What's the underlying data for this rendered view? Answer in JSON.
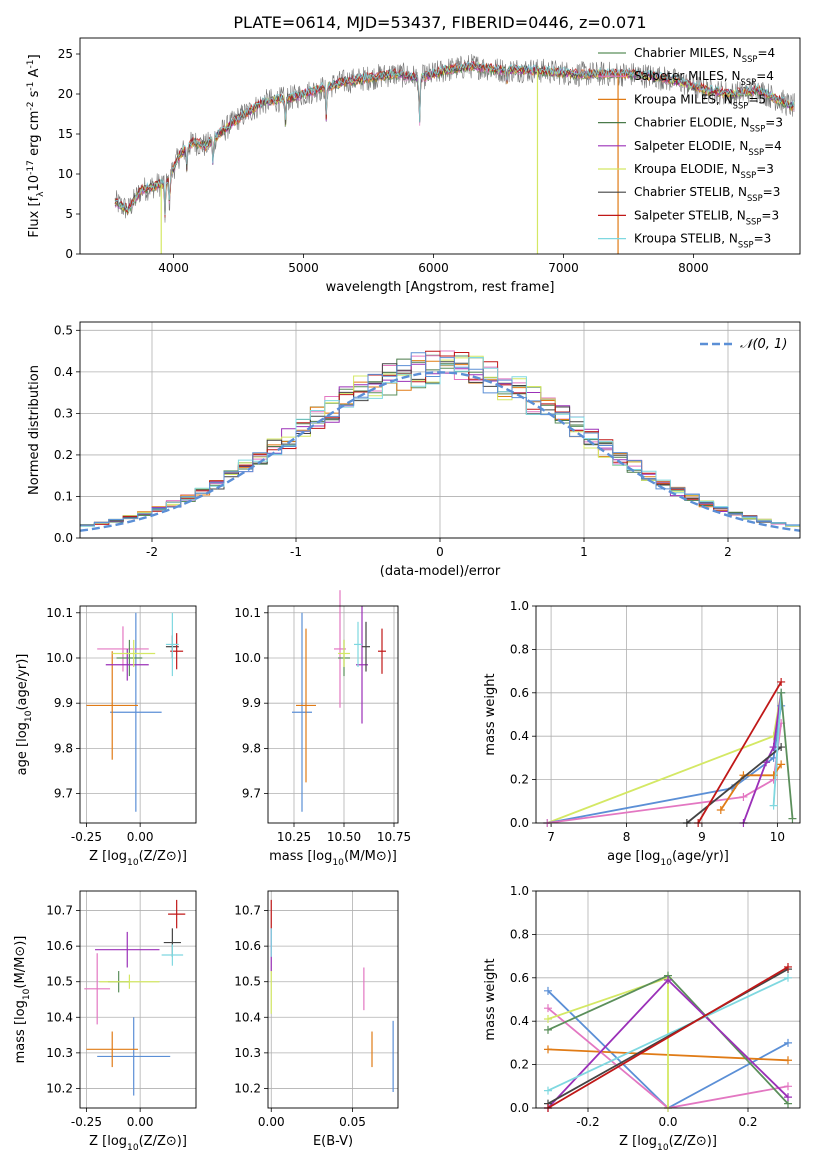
{
  "title": "PLATE=0614, MJD=53437, FIBERID=0446, z=0.071",
  "chart_data": [
    {
      "type": "line",
      "id": "spectrum",
      "xlabel": "wavelength [Angstrom, rest frame]",
      "ylabel": "Flux [f_λ10^-17 erg cm^-2 s^-1 A^-1]",
      "xlim": [
        3280,
        8820
      ],
      "ylim": [
        0,
        27
      ],
      "xticks": [
        4000,
        5000,
        6000,
        7000,
        8000
      ],
      "yticks": [
        0,
        5,
        10,
        15,
        20,
        25
      ],
      "grid": false,
      "legend_position": "top-right",
      "legend": [
        {
          "label": "Chabrier MILES, N_SSP=4",
          "color": "#5b8f5b"
        },
        {
          "label": "Salpeter MILES, N_SSP=4",
          "color": "#e377c2"
        },
        {
          "label": "Kroupa MILES, N_SSP=5",
          "color": "#e07b16"
        },
        {
          "label": "Chabrier ELODIE, N_SSP=3",
          "color": "#4a7a4a"
        },
        {
          "label": "Salpeter ELODIE, N_SSP=4",
          "color": "#9b30b8"
        },
        {
          "label": "Kroupa ELODIE, N_SSP=3",
          "color": "#d4e864"
        },
        {
          "label": "Chabrier STELIB, N_SSP=3",
          "color": "#444444"
        },
        {
          "label": "Salpeter STELIB, N_SSP=3",
          "color": "#c01818"
        },
        {
          "label": "Kroupa STELIB, N_SSP=3",
          "color": "#7fd8e0"
        }
      ],
      "series_shape": {
        "x": [
          3550,
          3650,
          3750,
          3850,
          3950,
          4050,
          4150,
          4250,
          4350,
          4500,
          4700,
          4900,
          5100,
          5300,
          5500,
          5700,
          5900,
          6100,
          6300,
          6500,
          6700,
          6900,
          7100,
          7300,
          7500,
          7700,
          7900,
          8100,
          8300,
          8500,
          8750
        ],
        "y": [
          6.5,
          5.5,
          8,
          8.5,
          9,
          12.5,
          14,
          13.5,
          15,
          17,
          19,
          19.5,
          20.5,
          21.5,
          22,
          22.5,
          22,
          23,
          23.5,
          23,
          23,
          22.8,
          22.5,
          22.5,
          22.5,
          22.2,
          21.5,
          20.5,
          20,
          20.5,
          18.5
        ]
      }
    },
    {
      "type": "histogram",
      "id": "residuals",
      "xlabel": "(data-model)/error",
      "ylabel": "Normed distribution",
      "xlim": [
        -2.5,
        2.5
      ],
      "ylim": [
        0,
        0.52
      ],
      "xticks": [
        -2,
        -1,
        0,
        1,
        2
      ],
      "yticks": [
        0.0,
        0.1,
        0.2,
        0.3,
        0.4,
        0.5
      ],
      "grid": true,
      "legend_position": "top-right",
      "legend_label": "𝒩(0, 1)",
      "gaussian_color": "#5b8fd6",
      "bin_width": 0.1
    },
    {
      "type": "scatter",
      "id": "age-vs-Z",
      "xlabel": "Z [log10(Z/Z⊙)]",
      "ylabel": "age [log10(age/yr)]",
      "xlim": [
        -0.28,
        0.26
      ],
      "ylim": [
        9.635,
        10.115
      ],
      "xticks": [
        -0.25,
        0.0
      ],
      "yticks": [
        9.7,
        9.8,
        9.9,
        10.0,
        10.1
      ],
      "grid": true,
      "points": [
        {
          "x": -0.02,
          "y": 9.88,
          "xerr": 0.12,
          "yerr": 0.22,
          "color": "#5b8fd6"
        },
        {
          "x": -0.13,
          "y": 9.895,
          "xerr": 0.12,
          "yerr": 0.12,
          "color": "#e07b16"
        },
        {
          "x": -0.08,
          "y": 10.02,
          "xerr": 0.12,
          "yerr": 0.05,
          "color": "#e377c2"
        },
        {
          "x": -0.05,
          "y": 10.0,
          "xerr": 0.06,
          "yerr": 0.04,
          "color": "#5b8f5b"
        },
        {
          "x": -0.06,
          "y": 9.985,
          "xerr": 0.1,
          "yerr": 0.035,
          "color": "#9b30b8"
        },
        {
          "x": -0.03,
          "y": 10.01,
          "xerr": 0.1,
          "yerr": 0.03,
          "color": "#d4e864"
        },
        {
          "x": 0.15,
          "y": 10.025,
          "xerr": 0.03,
          "yerr": 0.025,
          "color": "#444444"
        },
        {
          "x": 0.17,
          "y": 10.015,
          "xerr": 0.03,
          "yerr": 0.04,
          "color": "#c01818"
        },
        {
          "x": 0.15,
          "y": 10.03,
          "xerr": 0.03,
          "yerr": 0.07,
          "color": "#7fd8e0"
        }
      ]
    },
    {
      "type": "scatter",
      "id": "age-vs-mass",
      "xlabel": "mass [log10(M/M⊙)]",
      "ylabel": "",
      "xlim": [
        10.12,
        10.77
      ],
      "ylim": [
        9.635,
        10.115
      ],
      "xticks": [
        10.25,
        10.5,
        10.75
      ],
      "yticks": [
        9.7,
        9.8,
        9.9,
        10.0,
        10.1
      ],
      "grid": true,
      "points": [
        {
          "x": 10.29,
          "y": 9.88,
          "xerr": 0.05,
          "yerr": 0.22,
          "color": "#5b8fd6"
        },
        {
          "x": 10.31,
          "y": 9.895,
          "xerr": 0.05,
          "yerr": 0.17,
          "color": "#e07b16"
        },
        {
          "x": 10.48,
          "y": 10.02,
          "xerr": 0.03,
          "yerr": 0.13,
          "color": "#e377c2"
        },
        {
          "x": 10.5,
          "y": 10.0,
          "xerr": 0.03,
          "yerr": 0.04,
          "color": "#5b8f5b"
        },
        {
          "x": 10.59,
          "y": 9.985,
          "xerr": 0.03,
          "yerr": 0.13,
          "color": "#9b30b8"
        },
        {
          "x": 10.5,
          "y": 10.01,
          "xerr": 0.03,
          "yerr": 0.03,
          "color": "#d4e864"
        },
        {
          "x": 10.61,
          "y": 10.025,
          "xerr": 0.02,
          "yerr": 0.055,
          "color": "#444444"
        },
        {
          "x": 10.69,
          "y": 10.015,
          "xerr": 0.02,
          "yerr": 0.05,
          "color": "#c01818"
        },
        {
          "x": 10.57,
          "y": 10.03,
          "xerr": 0.02,
          "yerr": 0.05,
          "color": "#7fd8e0"
        }
      ]
    },
    {
      "type": "line",
      "id": "mass-weight-vs-age",
      "xlabel": "age [log10(age/yr)]",
      "ylabel": "mass weight",
      "xlim": [
        6.8,
        10.3
      ],
      "ylim": [
        0.0,
        1.0
      ],
      "xticks": [
        7,
        8,
        9,
        10
      ],
      "yticks": [
        0.0,
        0.2,
        0.4,
        0.6,
        0.8,
        1.0
      ],
      "grid": true,
      "series": [
        {
          "color": "#d4e864",
          "x": [
            6.95,
            9.95,
            10.05
          ],
          "y": [
            0.0,
            0.4,
            0.6
          ]
        },
        {
          "color": "#5b8fd6",
          "x": [
            6.95,
            9.4,
            9.95,
            10.05
          ],
          "y": [
            0.0,
            0.16,
            0.3,
            0.54
          ]
        },
        {
          "color": "#e377c2",
          "x": [
            6.95,
            9.55,
            9.95,
            10.05
          ],
          "y": [
            0.0,
            0.12,
            0.2,
            0.46
          ]
        },
        {
          "color": "#e07b16",
          "x": [
            9.25,
            9.55,
            9.95,
            10.05
          ],
          "y": [
            0.06,
            0.22,
            0.22,
            0.27
          ]
        },
        {
          "color": "#9b30b8",
          "x": [
            9.55,
            9.85,
            9.95,
            10.05
          ],
          "y": [
            0.0,
            0.28,
            0.35,
            0.6
          ]
        },
        {
          "color": "#444444",
          "x": [
            8.8,
            10.05
          ],
          "y": [
            0.0,
            0.35
          ]
        },
        {
          "color": "#c01818",
          "x": [
            8.95,
            10.05
          ],
          "y": [
            0.0,
            0.65
          ]
        },
        {
          "color": "#7fd8e0",
          "x": [
            9.95,
            10.05
          ],
          "y": [
            0.08,
            0.6
          ]
        },
        {
          "color": "#5b8f5b",
          "x": [
            10.05,
            10.2
          ],
          "y": [
            0.6,
            0.02
          ]
        }
      ]
    },
    {
      "type": "scatter",
      "id": "mass-vs-Z",
      "xlabel": "Z [log10(Z/Z⊙)]",
      "ylabel": "mass [log10(M/M⊙)]",
      "xlim": [
        -0.28,
        0.26
      ],
      "ylim": [
        10.145,
        10.755
      ],
      "xticks": [
        -0.25,
        0.0
      ],
      "yticks": [
        10.2,
        10.3,
        10.4,
        10.5,
        10.6,
        10.7
      ],
      "grid": true,
      "points": [
        {
          "x": -0.03,
          "y": 10.29,
          "xerr": 0.17,
          "yerr": 0.11,
          "color": "#5b8fd6"
        },
        {
          "x": -0.13,
          "y": 10.31,
          "xerr": 0.12,
          "yerr": 0.05,
          "color": "#e07b16"
        },
        {
          "x": -0.2,
          "y": 10.48,
          "xerr": 0.06,
          "yerr": 0.1,
          "color": "#e377c2"
        },
        {
          "x": -0.1,
          "y": 10.5,
          "xerr": 0.05,
          "yerr": 0.03,
          "color": "#5b8f5b"
        },
        {
          "x": -0.06,
          "y": 10.59,
          "xerr": 0.15,
          "yerr": 0.05,
          "color": "#9b30b8"
        },
        {
          "x": -0.05,
          "y": 10.5,
          "xerr": 0.14,
          "yerr": 0.02,
          "color": "#d4e864"
        },
        {
          "x": 0.15,
          "y": 10.61,
          "xerr": 0.04,
          "yerr": 0.04,
          "color": "#444444"
        },
        {
          "x": 0.17,
          "y": 10.69,
          "xerr": 0.04,
          "yerr": 0.04,
          "color": "#c01818"
        },
        {
          "x": 0.15,
          "y": 10.575,
          "xerr": 0.05,
          "yerr": 0.03,
          "color": "#7fd8e0"
        }
      ]
    },
    {
      "type": "scatter",
      "id": "mass-vs-EBV",
      "xlabel": "E(B-V)",
      "ylabel": "",
      "xlim": [
        -0.002,
        0.078
      ],
      "ylim": [
        10.145,
        10.755
      ],
      "xticks": [
        0.0,
        0.05
      ],
      "yticks": [
        10.2,
        10.3,
        10.4,
        10.5,
        10.6,
        10.7
      ],
      "grid": true,
      "points": [
        {
          "x": 0.075,
          "y": 10.29,
          "xerr": 0.0,
          "yerr": 0.1,
          "color": "#5b8fd6"
        },
        {
          "x": 0.062,
          "y": 10.31,
          "xerr": 0.0,
          "yerr": 0.05,
          "color": "#e07b16"
        },
        {
          "x": 0.057,
          "y": 10.48,
          "xerr": 0.0,
          "yerr": 0.06,
          "color": "#e377c2"
        },
        {
          "x": 0.0,
          "y": 10.47,
          "xerr": 0.0,
          "yerr": 0.06,
          "color": "#d4e864"
        },
        {
          "x": 0.0,
          "y": 10.59,
          "xerr": 0.0,
          "yerr": 0.06,
          "color": "#9b30b8"
        },
        {
          "x": 0.0,
          "y": 10.69,
          "xerr": 0.0,
          "yerr": 0.04,
          "color": "#c01818"
        },
        {
          "x": 0.0,
          "y": 10.61,
          "xerr": 0.0,
          "yerr": 0.04,
          "color": "#7fd8e0"
        }
      ]
    },
    {
      "type": "line",
      "id": "mass-weight-vs-Z",
      "xlabel": "Z [log10(Z/Z⊙)]",
      "ylabel": "mass weight",
      "xlim": [
        -0.33,
        0.33
      ],
      "ylim": [
        0.0,
        1.0
      ],
      "xticks": [
        -0.2,
        0.0,
        0.2
      ],
      "yticks": [
        0.0,
        0.2,
        0.4,
        0.6,
        0.8,
        1.0
      ],
      "grid": true,
      "series": [
        {
          "color": "#5b8fd6",
          "x": [
            -0.3,
            0.0,
            0.3
          ],
          "y": [
            0.54,
            0.0,
            0.3
          ]
        },
        {
          "color": "#e07b16",
          "x": [
            -0.3,
            0.3
          ],
          "y": [
            0.27,
            0.22
          ]
        },
        {
          "color": "#e377c2",
          "x": [
            -0.3,
            0.0,
            0.3
          ],
          "y": [
            0.46,
            0.0,
            0.1
          ]
        },
        {
          "color": "#d4e864",
          "x": [
            -0.3,
            0.0,
            0.0
          ],
          "y": [
            0.41,
            0.6,
            0.0
          ]
        },
        {
          "color": "#5b8f5b",
          "x": [
            -0.3,
            0.0,
            0.3
          ],
          "y": [
            0.36,
            0.61,
            0.02
          ]
        },
        {
          "color": "#9b30b8",
          "x": [
            -0.3,
            0.0,
            0.3
          ],
          "y": [
            0.0,
            0.59,
            0.05
          ]
        },
        {
          "color": "#7fd8e0",
          "x": [
            -0.3,
            0.3
          ],
          "y": [
            0.08,
            0.6
          ]
        },
        {
          "color": "#444444",
          "x": [
            -0.3,
            0.3
          ],
          "y": [
            0.02,
            0.64
          ]
        },
        {
          "color": "#c01818",
          "x": [
            -0.3,
            0.3
          ],
          "y": [
            0.0,
            0.65
          ]
        }
      ]
    }
  ]
}
